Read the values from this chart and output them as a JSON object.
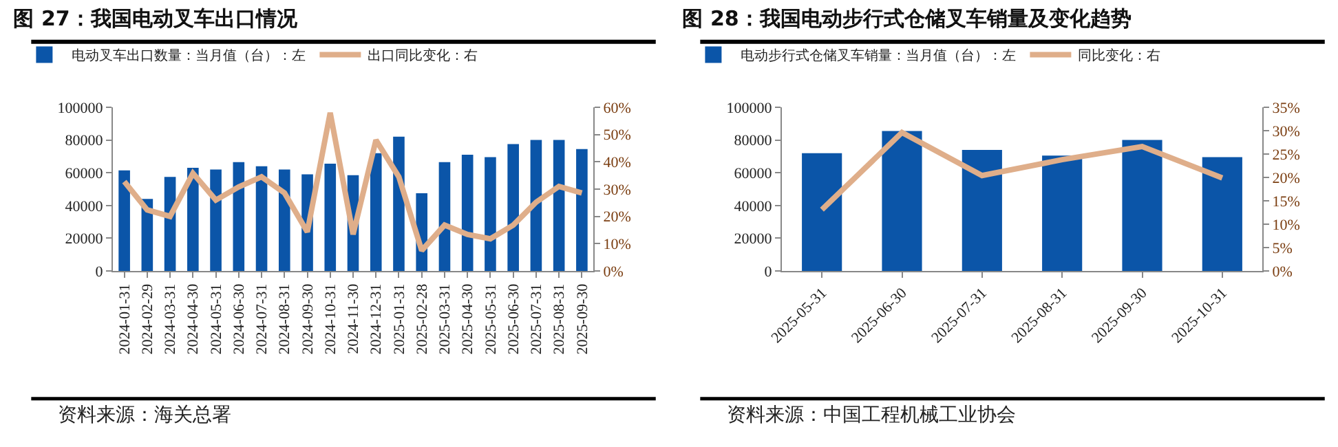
{
  "chart_data": [
    {
      "type": "bar",
      "title": "图 27：我国电动叉车出口情况",
      "categories": [
        "2024-01-31",
        "2024-02-29",
        "2024-03-31",
        "2024-04-30",
        "2024-05-31",
        "2024-06-30",
        "2024-07-31",
        "2024-08-31",
        "2024-09-30",
        "2024-10-31",
        "2024-11-30",
        "2024-12-31",
        "2025-01-31",
        "2025-02-28",
        "2025-03-31",
        "2025-04-30",
        "2025-05-31",
        "2025-06-30",
        "2025-07-31",
        "2025-08-31",
        "2025-09-30"
      ],
      "series": [
        {
          "name": "电动叉车出口数量：当月值（台）：左",
          "color": "#0b55a8",
          "values": [
            61500,
            44000,
            57500,
            63000,
            62000,
            66500,
            64000,
            62000,
            59000,
            65500,
            58500,
            72000,
            82000,
            47500,
            66500,
            71000,
            69500,
            77500,
            80000,
            80000,
            74500
          ]
        },
        {
          "name": "出口同比变化：右",
          "type": "line",
          "axis": "y2",
          "color": "#dfae8a",
          "values": [
            32.8,
            22.4,
            20,
            35.8,
            26,
            30.8,
            34.5,
            28.6,
            14.3,
            58,
            13.4,
            48,
            34.5,
            7.5,
            16.8,
            13.4,
            11.8,
            16.8,
            25.2,
            31,
            28.6
          ]
        }
      ],
      "ylim": [
        0,
        100000
      ],
      "yticks": [
        0,
        20000,
        40000,
        60000,
        80000,
        100000
      ],
      "y2lim": [
        0,
        60
      ],
      "y2ticks": [
        {
          "value": 0,
          "label": "0%"
        },
        {
          "value": 10,
          "label": "10%"
        },
        {
          "value": 20,
          "label": "20%"
        },
        {
          "value": 30,
          "label": "30%"
        },
        {
          "value": 40,
          "label": "40%"
        },
        {
          "value": 50,
          "label": "50%"
        },
        {
          "value": 60,
          "label": "60%"
        }
      ],
      "legend": "top",
      "grid": false,
      "annotations": [
        "资料来源：海关总署"
      ]
    },
    {
      "type": "bar",
      "title": "图 28：我国电动步行式仓储叉车销量及变化趋势",
      "categories": [
        "2025-05-31",
        "2025-06-30",
        "2025-07-31",
        "2025-08-31",
        "2025-09-30",
        "2025-10-31"
      ],
      "series": [
        {
          "name": "电动步行式仓储叉车销量：当月值（台）：左",
          "color": "#0b55a8",
          "values": [
            72000,
            85500,
            74000,
            70500,
            80000,
            69500
          ]
        },
        {
          "name": "同比变化：右",
          "type": "line",
          "axis": "y2",
          "color": "#dfae8a",
          "values": [
            13.1,
            29.6,
            20.4,
            23.8,
            26.6,
            19.9
          ]
        }
      ],
      "ylim": [
        0,
        100000
      ],
      "yticks": [
        0,
        20000,
        40000,
        60000,
        80000,
        100000
      ],
      "y2lim": [
        0,
        35
      ],
      "y2ticks": [
        {
          "value": 0,
          "label": "0%"
        },
        {
          "value": 5,
          "label": "5%"
        },
        {
          "value": 10,
          "label": "10%"
        },
        {
          "value": 15,
          "label": "15%"
        },
        {
          "value": 20,
          "label": "20%"
        },
        {
          "value": 25,
          "label": "25%"
        },
        {
          "value": 30,
          "label": "30%"
        },
        {
          "value": 35,
          "label": "35%"
        }
      ],
      "legend": "top",
      "grid": false,
      "annotations": [
        "资料来源：中国工程机械工业协会"
      ]
    }
  ]
}
